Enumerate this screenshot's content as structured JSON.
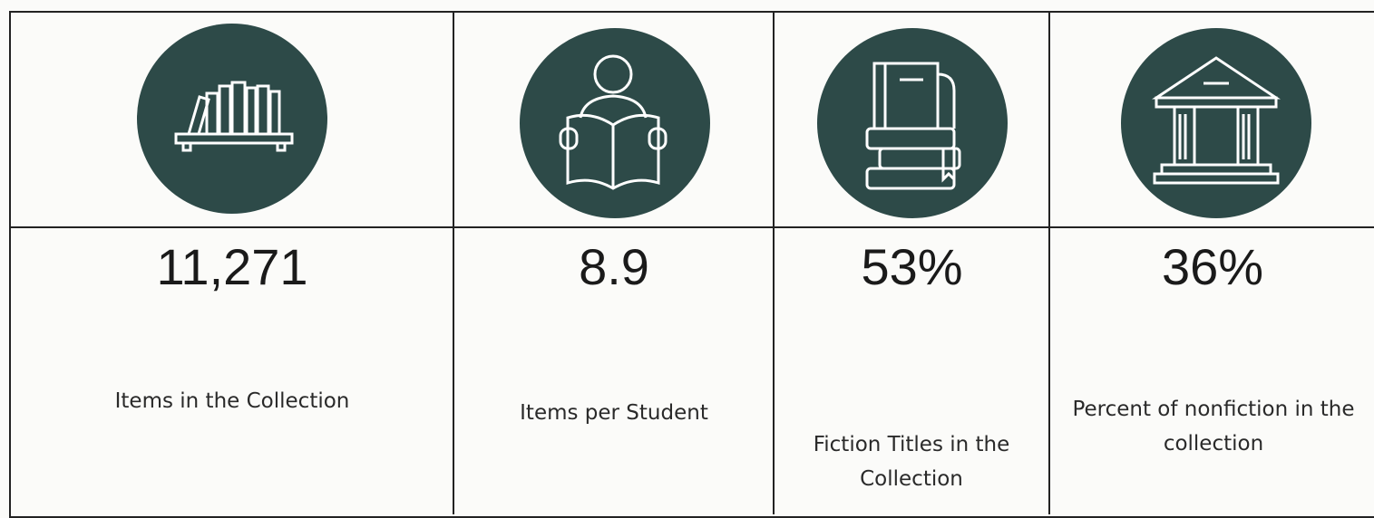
{
  "table": {
    "cells": [
      {
        "value": "11,271",
        "label": "Items in the Collection"
      },
      {
        "value": "8.9",
        "label": "Items per Student"
      },
      {
        "value": "53%",
        "label": "Fiction Titles in the Collection"
      },
      {
        "value": "36%",
        "label": "Percent of nonfiction in the collection"
      }
    ]
  }
}
